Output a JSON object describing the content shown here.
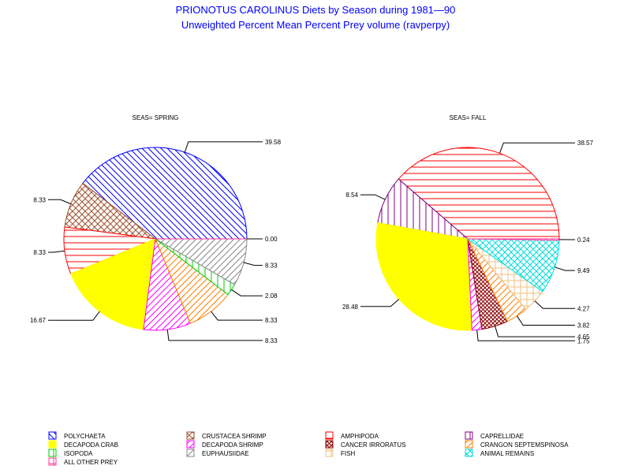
{
  "title": "PRIONOTUS CAROLINUS Diets by Season during 1981—90",
  "subtitle": "Unweighted Percent Mean Percent Prey  volume (ravperpy)",
  "categories": [
    {
      "key": "polychaeta",
      "name": "POLYCHAETA",
      "color": "#0000ff",
      "pattern": "diag-down"
    },
    {
      "key": "crustacea_shrimp",
      "name": "CRUSTACEA SHRIMP",
      "color": "#a0522d",
      "pattern": "cross-diag"
    },
    {
      "key": "amphipoda",
      "name": "AMPHIPODA",
      "color": "#ff0000",
      "pattern": "horizontal"
    },
    {
      "key": "caprellidae",
      "name": "CAPRELLIDAE",
      "color": "#800080",
      "pattern": "vertical"
    },
    {
      "key": "decapoda_crab",
      "name": "DECAPODA CRAB",
      "color": "#ffff00",
      "pattern": "solid"
    },
    {
      "key": "decapoda_shrimp",
      "name": "DECAPODA SHRIMP",
      "color": "#ff00ff",
      "pattern": "diag-up"
    },
    {
      "key": "cancer_irroratus",
      "name": "CANCER IRRORATUS",
      "color": "#8b0000",
      "pattern": "cross-diag-dense"
    },
    {
      "key": "crangon",
      "name": "CRANGON SEPTEMSPINOSA",
      "color": "#ff8000",
      "pattern": "diag-up"
    },
    {
      "key": "isopoda",
      "name": "ISOPODA",
      "color": "#00cc00",
      "pattern": "vertical"
    },
    {
      "key": "euphausiidae",
      "name": "EUPHAUSIIDAE",
      "color": "#888888",
      "pattern": "diag-up"
    },
    {
      "key": "fish",
      "name": "FISH",
      "color": "#f0c080",
      "pattern": "cross"
    },
    {
      "key": "animal_remains",
      "name": "ANIMAL REMAINS",
      "color": "#00dddd",
      "pattern": "cross-diag"
    },
    {
      "key": "all_other",
      "name": "ALL OTHER PREY",
      "color": "#ff3399",
      "pattern": "cross"
    }
  ],
  "chart_data": [
    {
      "type": "pie",
      "title": "SEAS= SPRING",
      "slices": [
        {
          "category": "polychaeta",
          "value": 39.58,
          "label": "39.58"
        },
        {
          "category": "crustacea_shrimp",
          "value": 8.33,
          "label": "8.33"
        },
        {
          "category": "amphipoda",
          "value": 8.33,
          "label": "8.33"
        },
        {
          "category": "decapoda_crab",
          "value": 16.67,
          "label": "16.67"
        },
        {
          "category": "decapoda_shrimp",
          "value": 8.33,
          "label": "8.33"
        },
        {
          "category": "crangon",
          "value": 8.33,
          "label": "8.33"
        },
        {
          "category": "isopoda",
          "value": 2.08,
          "label": "2.08"
        },
        {
          "category": "euphausiidae",
          "value": 8.33,
          "label": "8.33"
        },
        {
          "category": "all_other",
          "value": 0.0,
          "label": "0.00"
        }
      ]
    },
    {
      "type": "pie",
      "title": "SEAS= FALL",
      "slices": [
        {
          "category": "amphipoda",
          "value": 38.57,
          "label": "38.57"
        },
        {
          "category": "caprellidae",
          "value": 8.54,
          "label": "8.54"
        },
        {
          "category": "decapoda_crab",
          "value": 28.48,
          "label": "28.48"
        },
        {
          "category": "decapoda_shrimp",
          "value": 1.75,
          "label": "1.75"
        },
        {
          "category": "cancer_irroratus",
          "value": 4.65,
          "label": "4.65"
        },
        {
          "category": "crangon",
          "value": 3.82,
          "label": "3.82"
        },
        {
          "category": "fish",
          "value": 4.27,
          "label": "4.27"
        },
        {
          "category": "animal_remains",
          "value": 9.49,
          "label": "9.49"
        },
        {
          "category": "all_other",
          "value": 0.24,
          "label": "0.24"
        }
      ]
    }
  ]
}
